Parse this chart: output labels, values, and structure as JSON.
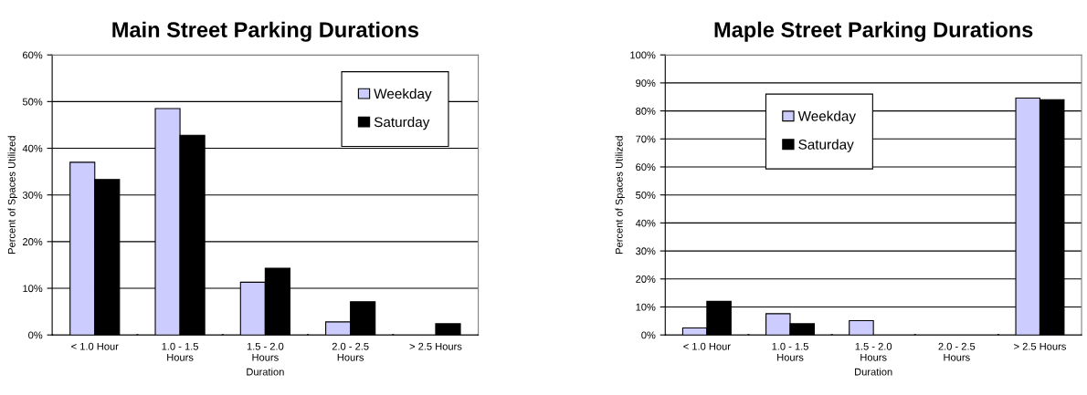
{
  "chart_data": [
    {
      "type": "bar",
      "title": "Main Street Parking Durations",
      "xlabel": "Duration",
      "ylabel": "Percent of Spaces Utilized",
      "categories": [
        "< 1.0 Hour",
        "1.0 - 1.5\nHours",
        "1.5 - 2.0\nHours",
        "2.0 - 2.5\nHours",
        "> 2.5 Hours"
      ],
      "series": [
        {
          "name": "Weekday",
          "color": "#ccccff",
          "values": [
            37,
            48.5,
            11.3,
            2.8,
            0
          ]
        },
        {
          "name": "Saturday",
          "color": "#000000",
          "values": [
            33.3,
            42.8,
            14.3,
            7.1,
            2.4
          ]
        }
      ],
      "ylim": [
        0,
        60
      ],
      "yticks": [
        {
          "value": 0,
          "label": "0%"
        },
        {
          "value": 10,
          "label": "10%"
        },
        {
          "value": 20,
          "label": "20%"
        },
        {
          "value": 30,
          "label": "30%"
        },
        {
          "value": 40,
          "label": "40%"
        },
        {
          "value": 50,
          "label": "50%"
        },
        {
          "value": 60,
          "label": "60%"
        }
      ],
      "grid": "y",
      "legend": "top right"
    },
    {
      "type": "bar",
      "title": "Maple Street Parking Durations",
      "xlabel": "Duration",
      "ylabel": "Percent of Spaces Utilized",
      "categories": [
        "< 1.0 Hour",
        "1.0 - 1.5\nHours",
        "1.5 - 2.0\nHours",
        "2.0 - 2.5\nHours",
        "> 2.5 Hours"
      ],
      "series": [
        {
          "name": "Weekday",
          "color": "#ccccff",
          "values": [
            2.5,
            7.6,
            5.1,
            0,
            84.6
          ]
        },
        {
          "name": "Saturday",
          "color": "#000000",
          "values": [
            12,
            4,
            0,
            0,
            84
          ]
        }
      ],
      "ylim": [
        0,
        100
      ],
      "yticks": [
        {
          "value": 0,
          "label": "0%"
        },
        {
          "value": 10,
          "label": "10%"
        },
        {
          "value": 20,
          "label": "20%"
        },
        {
          "value": 30,
          "label": "30%"
        },
        {
          "value": 40,
          "label": "40%"
        },
        {
          "value": 50,
          "label": "50%"
        },
        {
          "value": 60,
          "label": "60%"
        },
        {
          "value": 70,
          "label": "70%"
        },
        {
          "value": 80,
          "label": "80%"
        },
        {
          "value": 90,
          "label": "90%"
        },
        {
          "value": 100,
          "label": "100%"
        }
      ],
      "grid": "y",
      "legend": "top"
    }
  ]
}
